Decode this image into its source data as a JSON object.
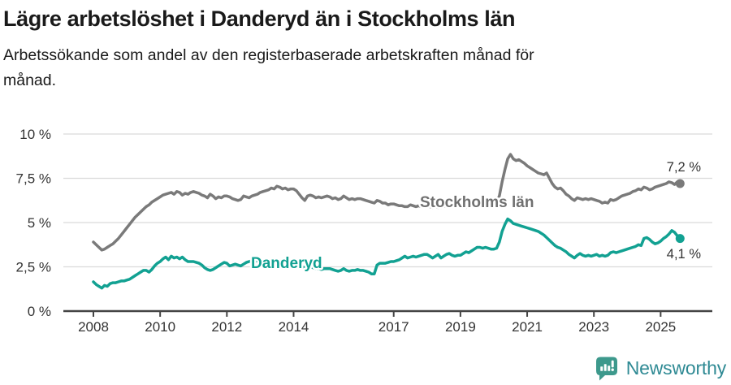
{
  "header": {
    "title": "Lägre arbetslöshet i Danderyd än i Stockholms län",
    "subtitle_lines": [
      "Arbetssökande som andel av den registerbaserade arbetskraften månad för",
      "månad."
    ]
  },
  "chart_data": {
    "type": "line",
    "title": "Lägre arbetslöshet i Danderyd än i Stockholms län",
    "subtitle": "Arbetssökande som andel av den registerbaserade arbetskraften månad för månad.",
    "x_unit": "month",
    "x_start": "2008-01",
    "x_end": "2025-08",
    "ylim": [
      0,
      10
    ],
    "grid": "horizontal",
    "colors": {
      "axis_text": "#333333",
      "axis_line": "#444444",
      "gridline": "#dadada",
      "end_label": "#333333"
    },
    "y_ticks": [
      {
        "value": 0,
        "label": "0 %"
      },
      {
        "value": 2.5,
        "label": "2,5 %"
      },
      {
        "value": 5,
        "label": "5 %"
      },
      {
        "value": 7.5,
        "label": "7,5 %"
      },
      {
        "value": 10,
        "label": "10 %"
      }
    ],
    "x_ticks": [
      {
        "year": 2008,
        "label": "2008"
      },
      {
        "year": 2010,
        "label": "2010"
      },
      {
        "year": 2012,
        "label": "2012"
      },
      {
        "year": 2014,
        "label": "2014"
      },
      {
        "year": 2017,
        "label": "2017"
      },
      {
        "year": 2019,
        "label": "2019"
      },
      {
        "year": 2021,
        "label": "2021"
      },
      {
        "year": 2023,
        "label": "2023"
      },
      {
        "year": 2025,
        "label": "2025"
      }
    ],
    "series": [
      {
        "name": "Stockholms län",
        "color": "#7a7a7a",
        "label_color": "#707070",
        "end_label": "7,2 %",
        "end_value": 7.2,
        "values": [
          3.9,
          3.75,
          3.6,
          3.45,
          3.5,
          3.6,
          3.7,
          3.8,
          3.95,
          4.1,
          4.3,
          4.5,
          4.7,
          4.9,
          5.1,
          5.3,
          5.45,
          5.6,
          5.75,
          5.9,
          6.0,
          6.15,
          6.25,
          6.35,
          6.45,
          6.55,
          6.6,
          6.65,
          6.7,
          6.6,
          6.75,
          6.7,
          6.55,
          6.65,
          6.6,
          6.7,
          6.75,
          6.7,
          6.65,
          6.55,
          6.5,
          6.4,
          6.6,
          6.5,
          6.35,
          6.45,
          6.4,
          6.5,
          6.5,
          6.45,
          6.35,
          6.3,
          6.25,
          6.3,
          6.5,
          6.45,
          6.4,
          6.5,
          6.55,
          6.6,
          6.7,
          6.75,
          6.8,
          6.85,
          6.95,
          6.9,
          7.05,
          7.0,
          6.9,
          6.95,
          6.85,
          6.9,
          6.9,
          6.8,
          6.6,
          6.4,
          6.25,
          6.5,
          6.55,
          6.5,
          6.4,
          6.45,
          6.4,
          6.45,
          6.5,
          6.45,
          6.35,
          6.4,
          6.3,
          6.35,
          6.5,
          6.4,
          6.3,
          6.35,
          6.3,
          6.35,
          6.35,
          6.3,
          6.25,
          6.2,
          6.15,
          6.1,
          6.25,
          6.2,
          6.1,
          6.1,
          6.0,
          6.05,
          6.05,
          6.0,
          5.95,
          5.95,
          5.9,
          5.9,
          6.0,
          5.95,
          5.9,
          5.95,
          5.9,
          5.95,
          5.95,
          5.9,
          5.85,
          5.9,
          5.85,
          5.85,
          5.95,
          5.9,
          5.85,
          5.9,
          5.9,
          5.95,
          5.95,
          5.9,
          5.85,
          5.9,
          5.9,
          5.95,
          6.05,
          6.0,
          5.95,
          6.0,
          6.05,
          6.1,
          6.15,
          6.2,
          6.5,
          7.3,
          8.0,
          8.6,
          8.85,
          8.6,
          8.5,
          8.55,
          8.45,
          8.35,
          8.2,
          8.1,
          8.0,
          7.9,
          7.8,
          7.75,
          7.7,
          7.8,
          7.5,
          7.2,
          7.0,
          6.9,
          6.95,
          6.8,
          6.6,
          6.5,
          6.35,
          6.25,
          6.4,
          6.35,
          6.3,
          6.35,
          6.3,
          6.35,
          6.3,
          6.25,
          6.2,
          6.1,
          6.15,
          6.1,
          6.3,
          6.25,
          6.3,
          6.4,
          6.5,
          6.55,
          6.6,
          6.65,
          6.75,
          6.8,
          6.9,
          6.85,
          7.0,
          6.95,
          6.85,
          6.9,
          7.0,
          7.05,
          7.1,
          7.15,
          7.2,
          7.3,
          7.25,
          7.15,
          7.3,
          7.2
        ]
      },
      {
        "name": "Danderyd",
        "color": "#12a192",
        "label_color": "#12a192",
        "end_label": "4,1 %",
        "end_value": 4.1,
        "values": [
          1.65,
          1.5,
          1.4,
          1.3,
          1.45,
          1.4,
          1.55,
          1.6,
          1.6,
          1.65,
          1.7,
          1.7,
          1.75,
          1.8,
          1.9,
          2.0,
          2.1,
          2.2,
          2.3,
          2.3,
          2.2,
          2.35,
          2.55,
          2.7,
          2.8,
          2.95,
          3.05,
          2.9,
          3.1,
          3.0,
          3.05,
          2.95,
          3.05,
          2.9,
          2.8,
          2.8,
          2.8,
          2.75,
          2.7,
          2.6,
          2.45,
          2.35,
          2.3,
          2.35,
          2.45,
          2.55,
          2.65,
          2.75,
          2.7,
          2.55,
          2.6,
          2.65,
          2.6,
          2.55,
          2.65,
          2.75,
          2.8,
          2.85,
          2.8,
          2.85,
          2.8,
          2.75,
          2.7,
          2.7,
          2.65,
          2.6,
          2.7,
          2.65,
          2.6,
          2.6,
          2.55,
          2.6,
          2.6,
          2.55,
          2.5,
          2.5,
          2.45,
          2.4,
          2.5,
          2.45,
          2.4,
          2.4,
          2.35,
          2.4,
          2.4,
          2.4,
          2.35,
          2.3,
          2.25,
          2.3,
          2.4,
          2.3,
          2.25,
          2.3,
          2.3,
          2.35,
          2.3,
          2.3,
          2.25,
          2.2,
          2.1,
          2.1,
          2.6,
          2.7,
          2.7,
          2.7,
          2.75,
          2.8,
          2.8,
          2.85,
          2.9,
          3.0,
          3.1,
          3.0,
          3.05,
          3.1,
          3.05,
          3.1,
          3.15,
          3.2,
          3.2,
          3.1,
          3.0,
          3.1,
          3.2,
          3.0,
          3.1,
          3.2,
          3.25,
          3.15,
          3.1,
          3.15,
          3.15,
          3.25,
          3.35,
          3.3,
          3.4,
          3.5,
          3.6,
          3.6,
          3.55,
          3.6,
          3.55,
          3.5,
          3.5,
          3.55,
          3.9,
          4.5,
          4.9,
          5.2,
          5.1,
          4.95,
          4.9,
          4.85,
          4.8,
          4.75,
          4.7,
          4.65,
          4.6,
          4.55,
          4.5,
          4.4,
          4.3,
          4.15,
          4.0,
          3.85,
          3.7,
          3.6,
          3.55,
          3.45,
          3.35,
          3.2,
          3.1,
          3.0,
          3.15,
          3.25,
          3.15,
          3.1,
          3.15,
          3.1,
          3.15,
          3.2,
          3.1,
          3.15,
          3.1,
          3.15,
          3.3,
          3.35,
          3.3,
          3.35,
          3.4,
          3.45,
          3.5,
          3.55,
          3.6,
          3.65,
          3.75,
          3.7,
          4.1,
          4.15,
          4.05,
          3.9,
          3.8,
          3.85,
          3.95,
          4.1,
          4.2,
          4.35,
          4.55,
          4.45,
          4.25,
          4.1
        ]
      }
    ]
  },
  "footer": {
    "brand": "Newsworthy",
    "brand_color": "#2f8a94",
    "icon_color": "#3d998c"
  }
}
